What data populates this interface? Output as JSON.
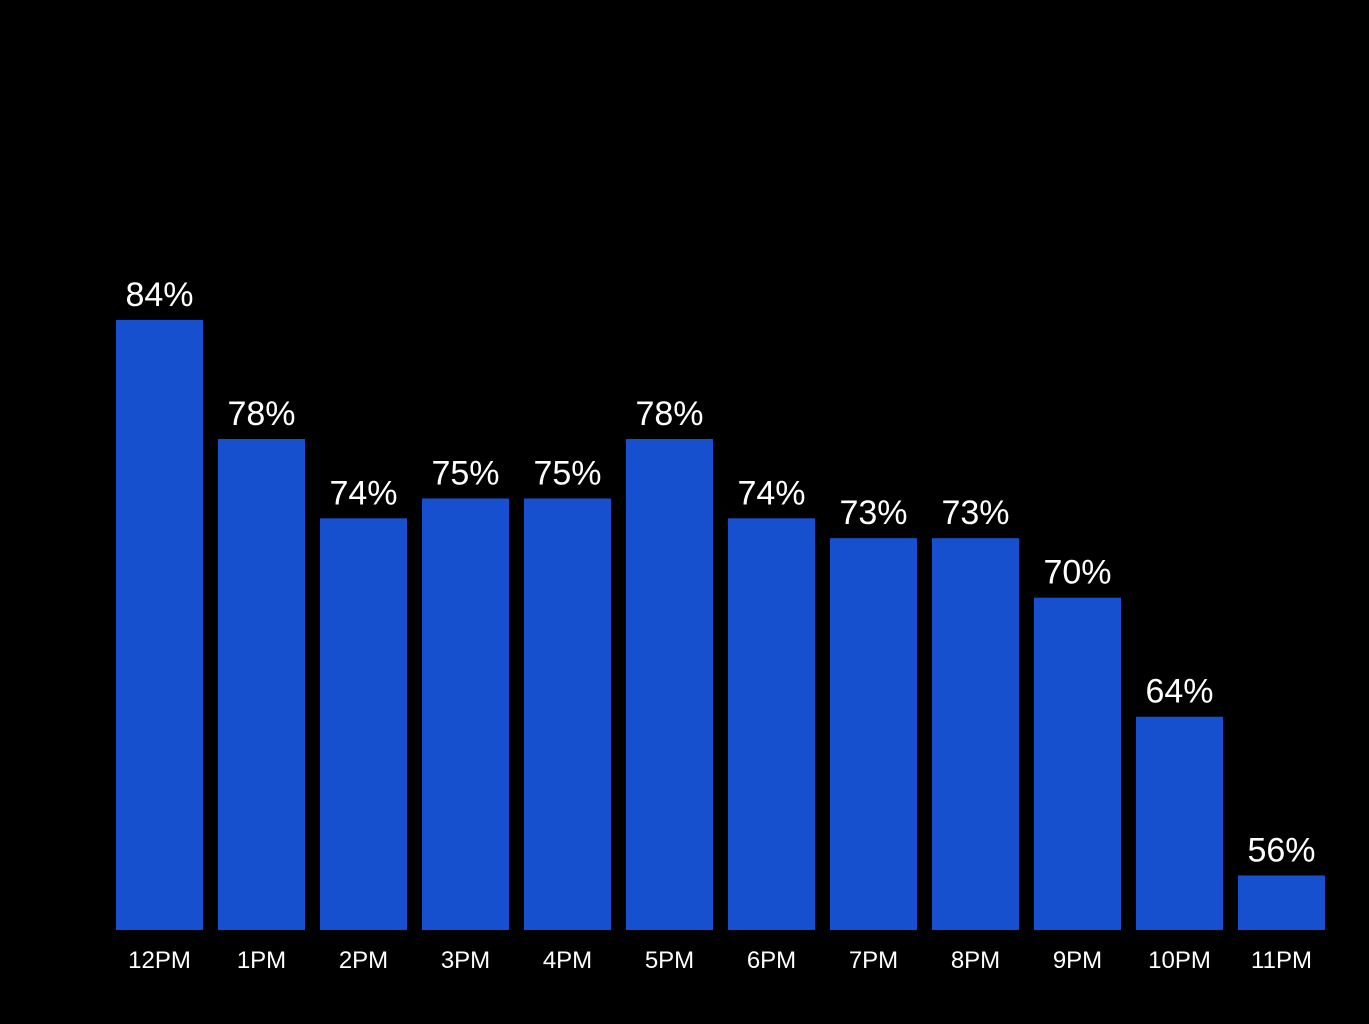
{
  "chart_data": {
    "type": "bar",
    "categories": [
      "12PM",
      "1PM",
      "2PM",
      "3PM",
      "4PM",
      "5PM",
      "6PM",
      "7PM",
      "8PM",
      "9PM",
      "10PM",
      "11PM"
    ],
    "values": [
      84,
      78,
      74,
      75,
      75,
      78,
      74,
      73,
      73,
      70,
      64,
      56
    ],
    "value_labels": [
      "84%",
      "78%",
      "74%",
      "75%",
      "75%",
      "78%",
      "74%",
      "73%",
      "73%",
      "70%",
      "64%",
      "56%"
    ],
    "title": "",
    "xlabel": "",
    "ylabel": "",
    "ylim": [
      53.25,
      84
    ],
    "grid": false,
    "legend": "none",
    "colors": {
      "bar": "#1750CF",
      "background": "#000000",
      "text": "#FFFFFF"
    }
  }
}
